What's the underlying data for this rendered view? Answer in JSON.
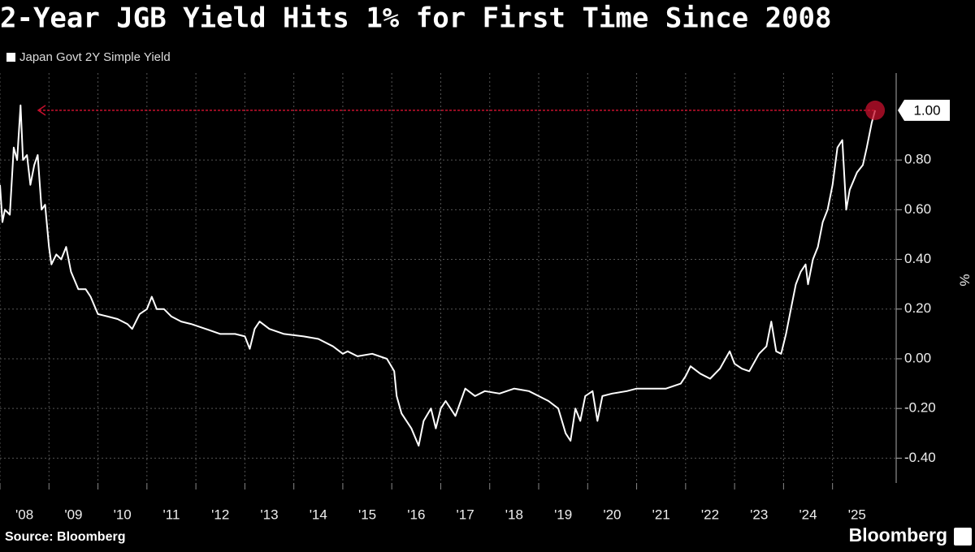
{
  "chart_data": {
    "type": "line",
    "title": "2-Year JGB Yield Hits 1% for First Time Since 2008",
    "y_label": "%",
    "source": "Source: Bloomberg",
    "brand": "Bloomberg",
    "grid": true,
    "legend": "top-left",
    "xlim": [
      2008,
      2026.25
    ],
    "ylim": [
      -0.5,
      1.15
    ],
    "xticks": [
      {
        "value": 2008,
        "label": "'08"
      },
      {
        "value": 2009,
        "label": "'09"
      },
      {
        "value": 2010,
        "label": "'10"
      },
      {
        "value": 2011,
        "label": "'11"
      },
      {
        "value": 2012,
        "label": "'12"
      },
      {
        "value": 2013,
        "label": "'13"
      },
      {
        "value": 2014,
        "label": "'14"
      },
      {
        "value": 2015,
        "label": "'15"
      },
      {
        "value": 2016,
        "label": "'16"
      },
      {
        "value": 2017,
        "label": "'17"
      },
      {
        "value": 2018,
        "label": "'18"
      },
      {
        "value": 2019,
        "label": "'19"
      },
      {
        "value": 2020,
        "label": "'20"
      },
      {
        "value": 2021,
        "label": "'21"
      },
      {
        "value": 2022,
        "label": "'22"
      },
      {
        "value": 2023,
        "label": "'23"
      },
      {
        "value": 2024,
        "label": "'24"
      },
      {
        "value": 2025,
        "label": "'25"
      }
    ],
    "yticks": [
      {
        "value": 0.8,
        "label": "0.80"
      },
      {
        "value": 0.6,
        "label": "0.60"
      },
      {
        "value": 0.4,
        "label": "0.40"
      },
      {
        "value": 0.2,
        "label": "0.20"
      },
      {
        "value": 0,
        "label": "0.00"
      },
      {
        "value": -0.2,
        "label": "-0.20"
      },
      {
        "value": -0.4,
        "label": "-0.40"
      }
    ],
    "reference_line": {
      "value": 1,
      "label": "1.00",
      "color": "#c8102e"
    },
    "x": [
      2008.0,
      2008.05,
      2008.1,
      2008.2,
      2008.28,
      2008.35,
      2008.42,
      2008.47,
      2008.55,
      2008.62,
      2008.7,
      2008.77,
      2008.85,
      2008.92,
      2009.0,
      2009.05,
      2009.15,
      2009.25,
      2009.35,
      2009.45,
      2009.6,
      2009.75,
      2009.85,
      2010.0,
      2010.2,
      2010.4,
      2010.6,
      2010.7,
      2010.85,
      2011.0,
      2011.1,
      2011.2,
      2011.35,
      2011.5,
      2011.7,
      2011.9,
      2012.2,
      2012.5,
      2012.8,
      2013.0,
      2013.1,
      2013.2,
      2013.3,
      2013.5,
      2013.8,
      2014.2,
      2014.5,
      2014.8,
      2015.0,
      2015.1,
      2015.3,
      2015.6,
      2015.9,
      2016.05,
      2016.1,
      2016.2,
      2016.4,
      2016.55,
      2016.65,
      2016.8,
      2016.9,
      2017.0,
      2017.1,
      2017.3,
      2017.5,
      2017.7,
      2017.9,
      2018.2,
      2018.5,
      2018.8,
      2019.0,
      2019.2,
      2019.4,
      2019.55,
      2019.65,
      2019.75,
      2019.85,
      2019.95,
      2020.1,
      2020.2,
      2020.3,
      2020.5,
      2020.8,
      2021.0,
      2021.3,
      2021.6,
      2021.9,
      2022.0,
      2022.1,
      2022.3,
      2022.5,
      2022.7,
      2022.9,
      2023.0,
      2023.15,
      2023.3,
      2023.5,
      2023.65,
      2023.75,
      2023.85,
      2023.95,
      2024.05,
      2024.15,
      2024.25,
      2024.35,
      2024.45,
      2024.5,
      2024.6,
      2024.7,
      2024.8,
      2024.9,
      2025.0,
      2025.1,
      2025.2,
      2025.28,
      2025.35,
      2025.5,
      2025.62,
      2025.7,
      2025.8,
      2025.87
    ],
    "series": [
      {
        "name": "Japan Govt 2Y Simple Yield",
        "color": "#ffffff",
        "values": [
          0.7,
          0.55,
          0.6,
          0.58,
          0.85,
          0.8,
          1.02,
          0.8,
          0.82,
          0.7,
          0.78,
          0.82,
          0.6,
          0.62,
          0.45,
          0.38,
          0.42,
          0.4,
          0.45,
          0.35,
          0.28,
          0.28,
          0.25,
          0.18,
          0.17,
          0.16,
          0.14,
          0.12,
          0.18,
          0.2,
          0.25,
          0.2,
          0.2,
          0.17,
          0.15,
          0.14,
          0.12,
          0.1,
          0.1,
          0.09,
          0.04,
          0.12,
          0.15,
          0.12,
          0.1,
          0.09,
          0.08,
          0.05,
          0.02,
          0.03,
          0.01,
          0.02,
          0.0,
          -0.05,
          -0.15,
          -0.22,
          -0.28,
          -0.35,
          -0.25,
          -0.2,
          -0.28,
          -0.2,
          -0.17,
          -0.23,
          -0.12,
          -0.15,
          -0.13,
          -0.14,
          -0.12,
          -0.13,
          -0.15,
          -0.17,
          -0.2,
          -0.3,
          -0.33,
          -0.2,
          -0.25,
          -0.15,
          -0.13,
          -0.25,
          -0.15,
          -0.14,
          -0.13,
          -0.12,
          -0.12,
          -0.12,
          -0.1,
          -0.07,
          -0.03,
          -0.06,
          -0.08,
          -0.04,
          0.03,
          -0.02,
          -0.04,
          -0.05,
          0.02,
          0.05,
          0.15,
          0.03,
          0.02,
          0.1,
          0.2,
          0.3,
          0.35,
          0.38,
          0.3,
          0.4,
          0.45,
          0.55,
          0.6,
          0.7,
          0.85,
          0.88,
          0.6,
          0.68,
          0.75,
          0.78,
          0.85,
          0.95,
          1.0
        ]
      }
    ]
  }
}
